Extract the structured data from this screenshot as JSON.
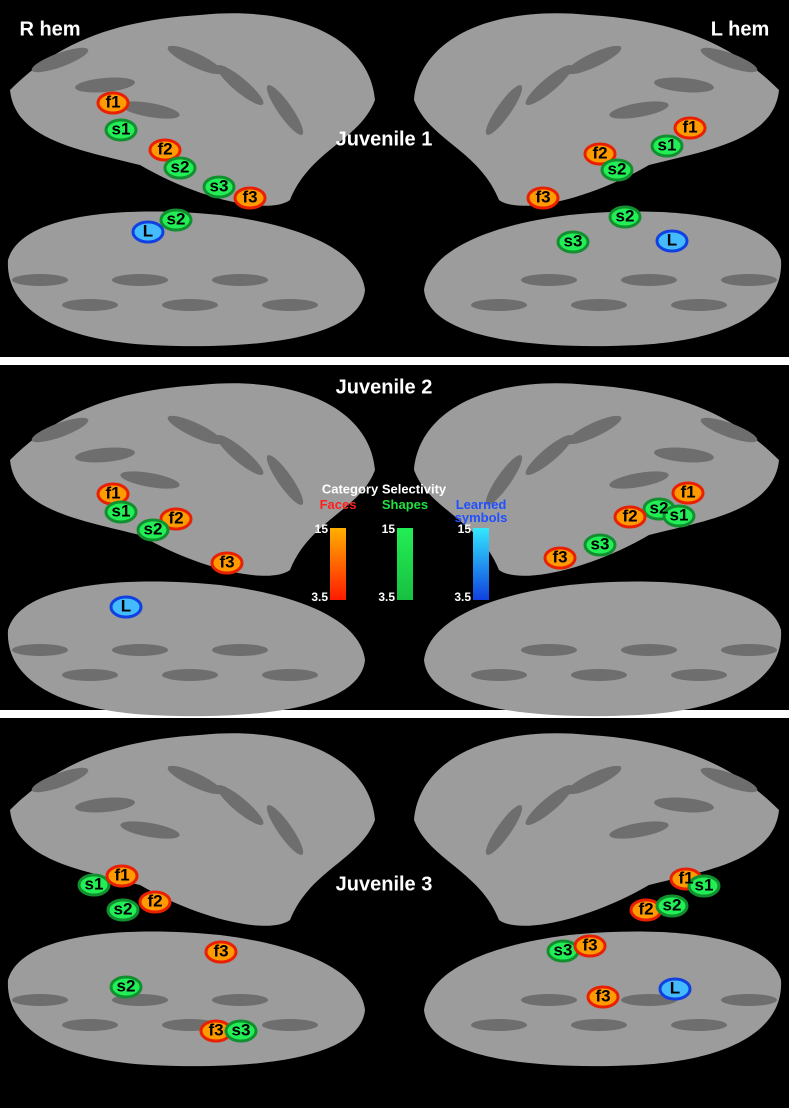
{
  "header": {
    "left": "R hem",
    "right": "L hem"
  },
  "panels": [
    {
      "title": "Juvenile 1",
      "labels": [
        "f1",
        "s1",
        "f2",
        "s2",
        "s3",
        "f3",
        "L",
        "s2",
        "f1",
        "s1",
        "f2",
        "s2",
        "f3",
        "s2",
        "s3",
        "L"
      ]
    },
    {
      "title": "Juvenile 2",
      "labels": [
        "f1",
        "s1",
        "f2",
        "s2",
        "f3",
        "L",
        "f1",
        "s2",
        "s1",
        "f2",
        "s3",
        "f3"
      ]
    },
    {
      "title": "Juvenile 3",
      "labels": [
        "s1",
        "f1",
        "s2",
        "f2",
        "f3",
        "s2",
        "f3",
        "s3",
        "f1",
        "s1",
        "f2",
        "s2",
        "s3",
        "f3",
        "f3",
        "L"
      ]
    }
  ],
  "legend": {
    "title": "Category Selectivity",
    "scales": [
      {
        "name": "Faces",
        "max": 15,
        "min": 3.5
      },
      {
        "name": "Shapes",
        "max": 15,
        "min": 3.5
      },
      {
        "name": "Learned symbols",
        "max": 15,
        "min": 3.5
      }
    ]
  }
}
